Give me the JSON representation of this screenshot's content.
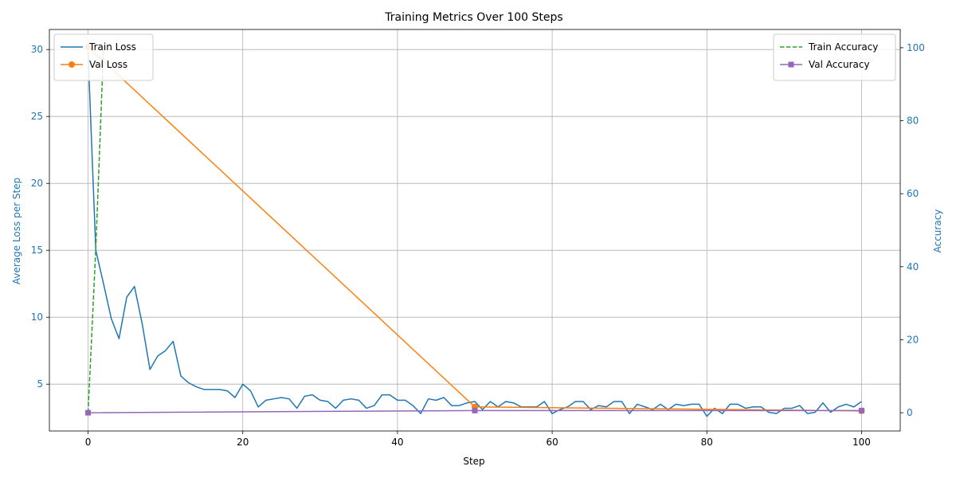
{
  "chart_data": {
    "type": "line",
    "title": "Training Metrics Over 100 Steps",
    "xlabel": "Step",
    "ylabel_left": "Average Loss per Step",
    "ylabel_right": "Accuracy",
    "xlim": [
      -5,
      105
    ],
    "ylim_left": [
      1.5,
      31.5
    ],
    "ylim_right": [
      -5,
      105
    ],
    "x_ticks": [
      0,
      20,
      40,
      60,
      80,
      100
    ],
    "y_left_ticks": [
      5,
      10,
      15,
      20,
      25,
      30
    ],
    "y_right_ticks": [
      0,
      20,
      40,
      60,
      80,
      100
    ],
    "grid": true,
    "legend_left_position": "upper-left",
    "legend_right_position": "upper-right",
    "colors": {
      "train_loss": "#1f77b4",
      "val_loss": "#ff7f0e",
      "train_accuracy": "#2ca02c",
      "val_accuracy": "#9467bd",
      "axis_left": "#1f77b4",
      "axis_right": "#1f77b4"
    },
    "series": [
      {
        "name": "Train Loss",
        "axis": "left",
        "style": "solid",
        "marker": "none",
        "x": [
          0,
          1,
          2,
          3,
          4,
          5,
          6,
          7,
          8,
          9,
          10,
          11,
          12,
          13,
          14,
          15,
          16,
          17,
          18,
          19,
          20,
          21,
          22,
          23,
          24,
          25,
          26,
          27,
          28,
          29,
          30,
          31,
          32,
          33,
          34,
          35,
          36,
          37,
          38,
          39,
          40,
          41,
          42,
          43,
          44,
          45,
          46,
          47,
          48,
          49,
          50,
          51,
          52,
          53,
          54,
          55,
          56,
          57,
          58,
          59,
          60,
          61,
          62,
          63,
          64,
          65,
          66,
          67,
          68,
          69,
          70,
          71,
          72,
          73,
          74,
          75,
          76,
          77,
          78,
          79,
          80,
          81,
          82,
          83,
          84,
          85,
          86,
          87,
          88,
          89,
          90,
          91,
          92,
          93,
          94,
          95,
          96,
          97,
          98,
          99,
          100
        ],
        "y": [
          29.8,
          15.0,
          12.5,
          9.9,
          8.4,
          11.5,
          12.3,
          9.5,
          6.1,
          7.1,
          7.5,
          8.2,
          5.6,
          5.1,
          4.8,
          4.6,
          4.6,
          4.6,
          4.5,
          4.0,
          5.0,
          4.5,
          3.3,
          3.8,
          3.9,
          4.0,
          3.9,
          3.2,
          4.1,
          4.2,
          3.8,
          3.7,
          3.2,
          3.8,
          3.9,
          3.8,
          3.2,
          3.4,
          4.2,
          4.2,
          3.8,
          3.8,
          3.4,
          2.8,
          3.9,
          3.8,
          4.0,
          3.4,
          3.4,
          3.6,
          3.7,
          3.1,
          3.7,
          3.3,
          3.7,
          3.6,
          3.3,
          3.3,
          3.3,
          3.7,
          2.8,
          3.1,
          3.3,
          3.7,
          3.7,
          3.1,
          3.4,
          3.3,
          3.7,
          3.7,
          2.8,
          3.5,
          3.3,
          3.1,
          3.5,
          3.1,
          3.5,
          3.4,
          3.5,
          3.5,
          2.6,
          3.2,
          2.8,
          3.5,
          3.5,
          3.2,
          3.3,
          3.3,
          2.9,
          2.8,
          3.2,
          3.2,
          3.4,
          2.8,
          2.9,
          3.6,
          2.9,
          3.3,
          3.5,
          3.3,
          3.7
        ]
      },
      {
        "name": "Val Loss",
        "axis": "left",
        "style": "solid",
        "marker": "circle",
        "x": [
          0,
          50,
          100
        ],
        "y": [
          30.2,
          3.3,
          3.0
        ]
      },
      {
        "name": "Train Accuracy",
        "axis": "right",
        "style": "dashed",
        "marker": "none",
        "x": [
          0,
          1,
          2
        ],
        "y": [
          0,
          45,
          100
        ]
      },
      {
        "name": "Val Accuracy",
        "axis": "right",
        "style": "solid",
        "marker": "square",
        "x": [
          0,
          50,
          100
        ],
        "y": [
          0.0,
          0.6,
          0.6
        ]
      }
    ]
  }
}
